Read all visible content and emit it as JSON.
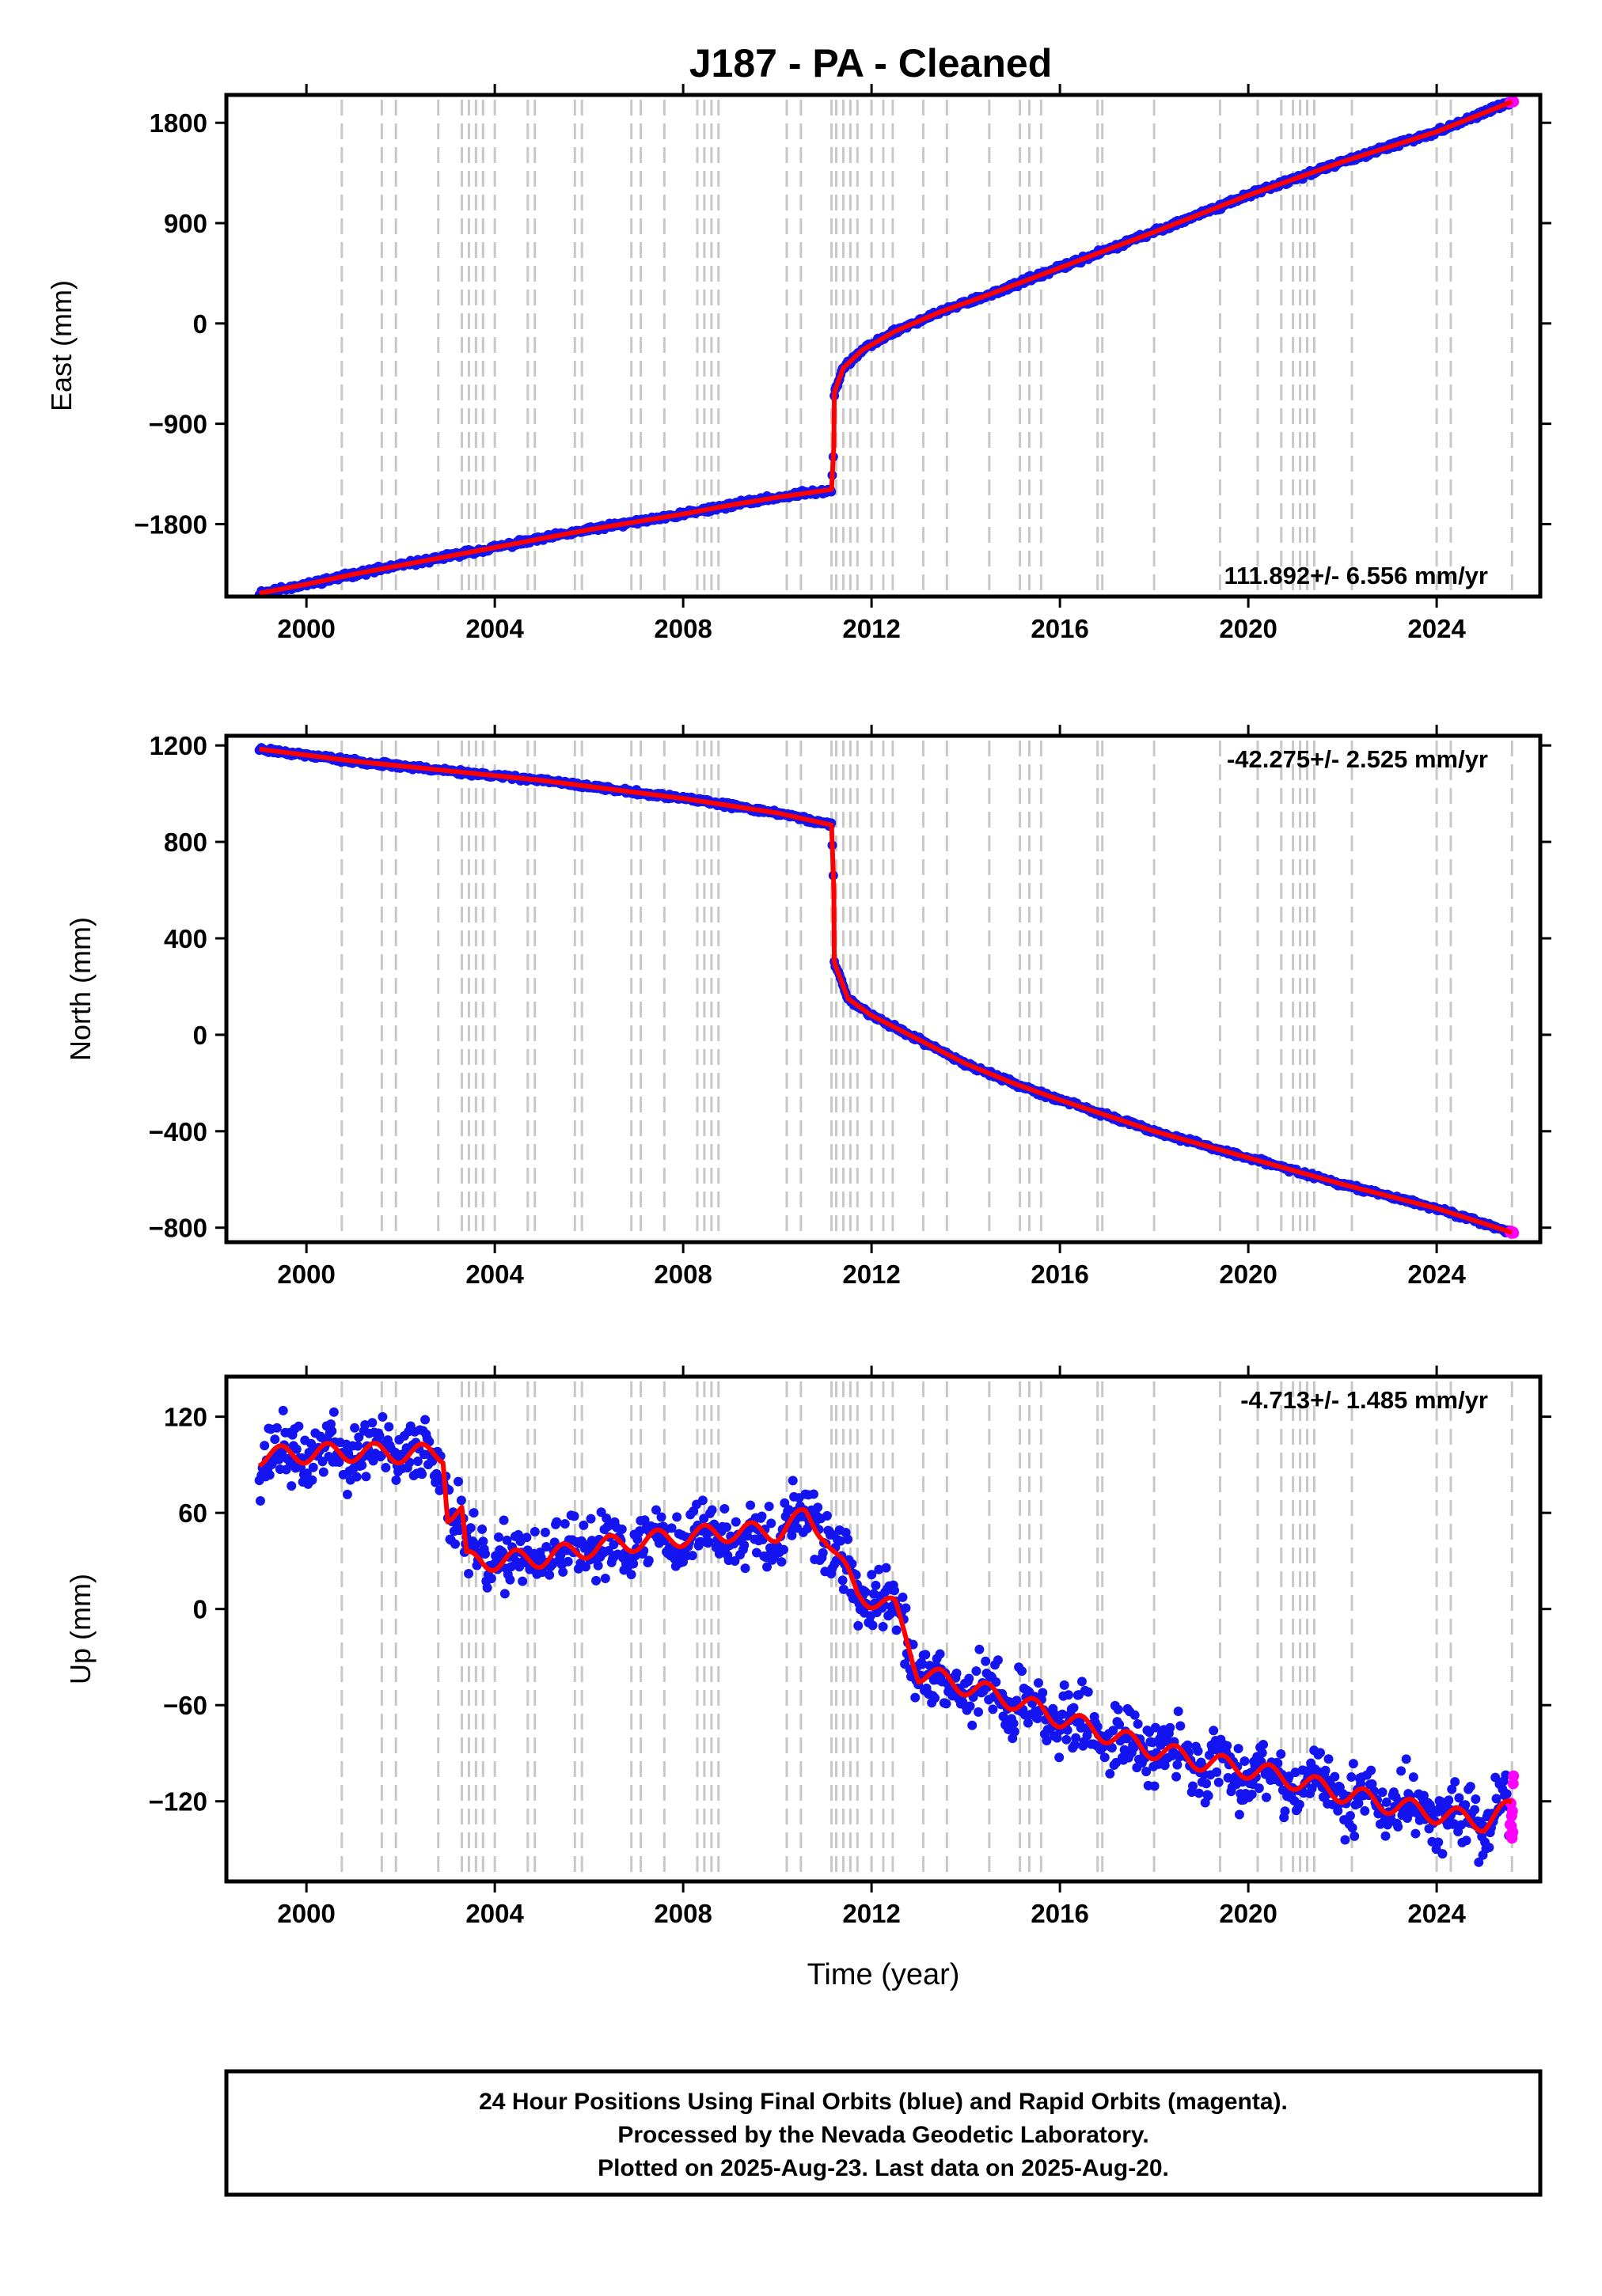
{
  "title": "J187  - PA - Cleaned",
  "colors": {
    "final_points": "#1414f0",
    "rapid_points": "#ff00ff",
    "model_line": "#ff0000",
    "event_lines": "#c8c8c8",
    "frame": "#000000"
  },
  "chart_data": [
    {
      "type": "scatter",
      "name": "east",
      "ylabel": "East (mm)",
      "xlabel": "",
      "xlim": [
        1998.3,
        2026.2
      ],
      "ylim": [
        -2450,
        2050
      ],
      "xticks": [
        2000,
        2004,
        2008,
        2012,
        2016,
        2020,
        2024
      ],
      "xtick_labels": [
        "2000",
        "2004",
        "2008",
        "2012",
        "2016",
        "2020",
        "2024"
      ],
      "yticks": [
        1800,
        900,
        0,
        -900,
        -1800
      ],
      "ytick_labels": [
        "1800",
        "900",
        "0",
        "−900",
        "−1800"
      ],
      "rate_label": "111.892+/- 6.556 mm/yr",
      "rate_position": "bottom-right",
      "model": [
        [
          1999.0,
          -2420
        ],
        [
          2000.0,
          -2340
        ],
        [
          2001.0,
          -2250
        ],
        [
          2002.0,
          -2170
        ],
        [
          2003.0,
          -2090
        ],
        [
          2004.0,
          -2010
        ],
        [
          2005.0,
          -1930
        ],
        [
          2006.0,
          -1850
        ],
        [
          2007.0,
          -1780
        ],
        [
          2008.0,
          -1710
        ],
        [
          2009.0,
          -1630
        ],
        [
          2010.0,
          -1560
        ],
        [
          2011.15,
          -1490
        ],
        [
          2011.2,
          -1100
        ],
        [
          2011.21,
          -620
        ],
        [
          2011.4,
          -400
        ],
        [
          2011.8,
          -240
        ],
        [
          2012.5,
          -70
        ],
        [
          2013.5,
          110
        ],
        [
          2014.5,
          260
        ],
        [
          2016.0,
          500
        ],
        [
          2018.0,
          820
        ],
        [
          2020.0,
          1150
        ],
        [
          2022.0,
          1450
        ],
        [
          2024.0,
          1720
        ],
        [
          2025.6,
          1990
        ]
      ]
    },
    {
      "type": "scatter",
      "name": "north",
      "ylabel": "North (mm)",
      "xlabel": "",
      "xlim": [
        1998.3,
        2026.2
      ],
      "ylim": [
        -860,
        1240
      ],
      "xticks": [
        2000,
        2004,
        2008,
        2012,
        2016,
        2020,
        2024
      ],
      "xtick_labels": [
        "2000",
        "2004",
        "2008",
        "2012",
        "2016",
        "2020",
        "2024"
      ],
      "yticks": [
        1200,
        800,
        400,
        0,
        -400,
        -800
      ],
      "ytick_labels": [
        "1200",
        "800",
        "400",
        "0",
        "−400",
        "−800"
      ],
      "rate_label": "-42.275+/- 2.525 mm/yr",
      "rate_position": "top-right",
      "model": [
        [
          1999.0,
          1185
        ],
        [
          2000.0,
          1160
        ],
        [
          2001.0,
          1135
        ],
        [
          2002.0,
          1115
        ],
        [
          2003.0,
          1095
        ],
        [
          2004.0,
          1075
        ],
        [
          2005.0,
          1055
        ],
        [
          2006.0,
          1030
        ],
        [
          2007.0,
          1005
        ],
        [
          2008.0,
          980
        ],
        [
          2009.0,
          950
        ],
        [
          2010.0,
          920
        ],
        [
          2011.15,
          870
        ],
        [
          2011.2,
          600
        ],
        [
          2011.21,
          300
        ],
        [
          2011.5,
          150
        ],
        [
          2012.0,
          80
        ],
        [
          2013.0,
          -20
        ],
        [
          2014.0,
          -120
        ],
        [
          2015.0,
          -200
        ],
        [
          2016.0,
          -270
        ],
        [
          2018.0,
          -400
        ],
        [
          2020.0,
          -510
        ],
        [
          2022.0,
          -620
        ],
        [
          2024.0,
          -720
        ],
        [
          2025.6,
          -820
        ]
      ]
    },
    {
      "type": "scatter",
      "name": "up",
      "ylabel": "Up (mm)",
      "xlabel": "Time (year)",
      "xlim": [
        1998.3,
        2026.2
      ],
      "ylim": [
        -170,
        145
      ],
      "xticks": [
        2000,
        2004,
        2008,
        2012,
        2016,
        2020,
        2024
      ],
      "xtick_labels": [
        "2000",
        "2004",
        "2008",
        "2012",
        "2016",
        "2020",
        "2024"
      ],
      "yticks": [
        120,
        60,
        0,
        -60,
        -120
      ],
      "ytick_labels": [
        "120",
        "60",
        "0",
        "−60",
        "−120"
      ],
      "rate_label": "-4.713+/- 1.485 mm/yr",
      "rate_position": "top-right",
      "model": [
        [
          1999.0,
          95
        ],
        [
          2000.0,
          97
        ],
        [
          2001.0,
          98
        ],
        [
          2002.0,
          97
        ],
        [
          2002.9,
          97
        ],
        [
          2003.0,
          60
        ],
        [
          2003.3,
          60
        ],
        [
          2003.4,
          30
        ],
        [
          2004.0,
          30
        ],
        [
          2005.0,
          32
        ],
        [
          2006.0,
          38
        ],
        [
          2007.0,
          42
        ],
        [
          2008.0,
          45
        ],
        [
          2009.0,
          48
        ],
        [
          2010.0,
          48
        ],
        [
          2010.6,
          58
        ],
        [
          2011.0,
          48
        ],
        [
          2011.3,
          30
        ],
        [
          2011.7,
          10
        ],
        [
          2012.5,
          0
        ],
        [
          2012.8,
          -22
        ],
        [
          2013.0,
          -40
        ],
        [
          2014.0,
          -48
        ],
        [
          2015.0,
          -57
        ],
        [
          2016.0,
          -68
        ],
        [
          2017.0,
          -78
        ],
        [
          2018.0,
          -88
        ],
        [
          2019.0,
          -95
        ],
        [
          2020.0,
          -100
        ],
        [
          2021.0,
          -107
        ],
        [
          2022.0,
          -115
        ],
        [
          2023.0,
          -122
        ],
        [
          2024.0,
          -128
        ],
        [
          2025.0,
          -133
        ],
        [
          2025.6,
          -124
        ]
      ]
    }
  ],
  "event_lines": [
    2000.75,
    2001.6,
    2001.9,
    2002.8,
    2003.3,
    2003.45,
    2003.6,
    2003.75,
    2004.0,
    2004.7,
    2004.85,
    2005.7,
    2005.85,
    2006.9,
    2007.1,
    2007.6,
    2008.3,
    2008.45,
    2008.6,
    2008.75,
    2010.2,
    2010.5,
    2011.15,
    2011.25,
    2011.4,
    2011.55,
    2011.7,
    2012.0,
    2012.25,
    2012.45,
    2013.1,
    2013.6,
    2014.5,
    2015.15,
    2015.35,
    2015.6,
    2016.8,
    2016.9,
    2018.0,
    2019.4,
    2020.2,
    2020.7,
    2020.95,
    2021.1,
    2021.25,
    2021.4,
    2022.2,
    2024.0,
    2024.3,
    2025.6
  ],
  "footer": {
    "line1": "24 Hour Positions Using Final Orbits (blue) and Rapid Orbits (magenta).",
    "line2": "Processed by the Nevada Geodetic Laboratory.",
    "line3": "Plotted on 2025-Aug-23. Last data on 2025-Aug-20."
  }
}
